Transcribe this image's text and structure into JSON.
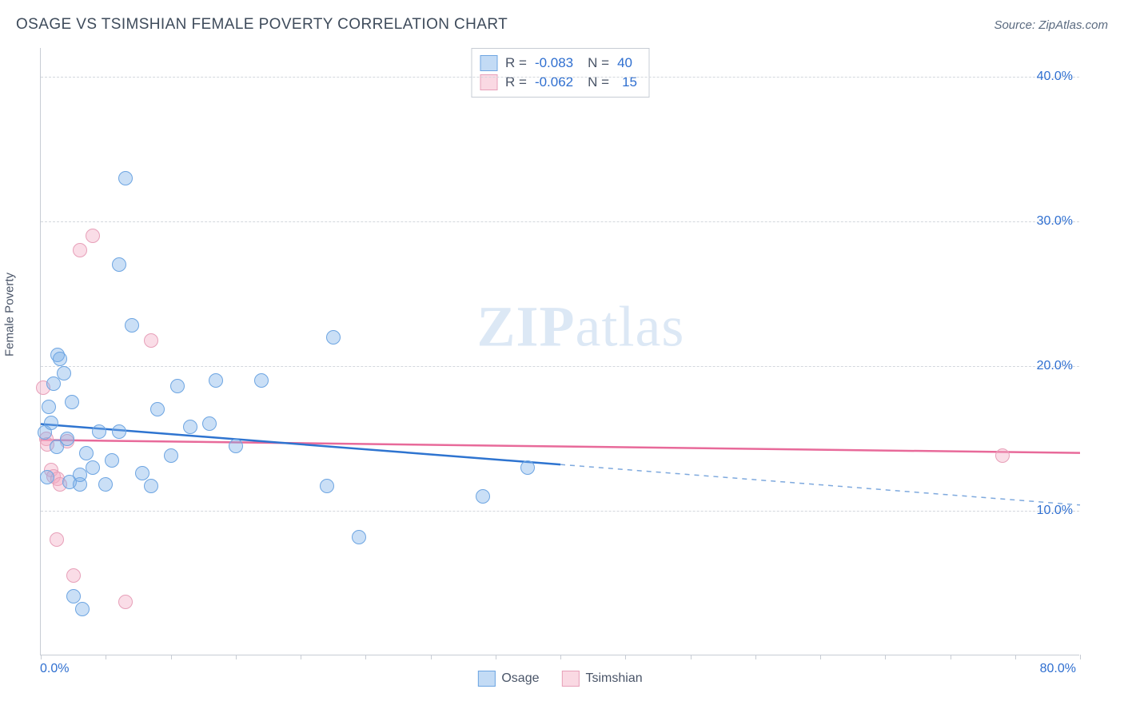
{
  "meta": {
    "title": "OSAGE VS TSIMSHIAN FEMALE POVERTY CORRELATION CHART",
    "source": "Source: ZipAtlas.com",
    "watermark_left": "ZIP",
    "watermark_right": "atlas"
  },
  "chart": {
    "type": "scatter+regression",
    "ylabel": "Female Poverty",
    "xlim": [
      0,
      80
    ],
    "ylim": [
      0,
      42
    ],
    "x_ticks": [
      0,
      5,
      10,
      15,
      20,
      25,
      30,
      35,
      40,
      45,
      50,
      55,
      60,
      65,
      70,
      75,
      80
    ],
    "y_gridlines": [
      {
        "value": 10,
        "label": "10.0%"
      },
      {
        "value": 20,
        "label": "20.0%"
      },
      {
        "value": 30,
        "label": "30.0%"
      },
      {
        "value": 40,
        "label": "40.0%"
      }
    ],
    "x_axis_label_min": "0.0%",
    "x_axis_label_max": "80.0%",
    "background_color": "#ffffff",
    "grid_color": "#d3d7dd",
    "axis_color": "#c7ccd4",
    "axis_label_color": "#2f6fd0",
    "title_fontsize": 19,
    "axis_fontsize": 16,
    "marker_radius": 9,
    "series": {
      "osage": {
        "label": "Osage",
        "color_fill": "rgba(122,175,233,0.40)",
        "color_stroke": "#6da5e2",
        "R": "-0.083",
        "N": "40",
        "points": [
          [
            0.3,
            15.4
          ],
          [
            0.5,
            12.3
          ],
          [
            0.6,
            17.2
          ],
          [
            0.8,
            16.1
          ],
          [
            1.0,
            18.8
          ],
          [
            1.2,
            14.4
          ],
          [
            1.3,
            20.8
          ],
          [
            1.5,
            20.5
          ],
          [
            1.8,
            19.5
          ],
          [
            2.0,
            15.0
          ],
          [
            2.2,
            12.0
          ],
          [
            2.4,
            17.5
          ],
          [
            2.5,
            4.1
          ],
          [
            3.0,
            11.8
          ],
          [
            3.0,
            12.5
          ],
          [
            3.2,
            3.2
          ],
          [
            3.5,
            14.0
          ],
          [
            4.0,
            13.0
          ],
          [
            4.5,
            15.5
          ],
          [
            5.0,
            11.8
          ],
          [
            5.5,
            13.5
          ],
          [
            6.0,
            15.5
          ],
          [
            6.0,
            27.0
          ],
          [
            6.5,
            33.0
          ],
          [
            7.0,
            22.8
          ],
          [
            7.8,
            12.6
          ],
          [
            8.5,
            11.7
          ],
          [
            9.0,
            17.0
          ],
          [
            10.0,
            13.8
          ],
          [
            10.5,
            18.6
          ],
          [
            11.5,
            15.8
          ],
          [
            13.0,
            16.0
          ],
          [
            13.5,
            19.0
          ],
          [
            15.0,
            14.5
          ],
          [
            17.0,
            19.0
          ],
          [
            22.5,
            22.0
          ],
          [
            22.0,
            11.7
          ],
          [
            24.5,
            8.2
          ],
          [
            34.0,
            11.0
          ],
          [
            37.5,
            13.0
          ]
        ],
        "regression": {
          "x1": 0,
          "y1": 16.0,
          "x2": 40,
          "y2": 13.2,
          "ext_x2": 80,
          "ext_y2": 10.4,
          "solid_color": "#2e74d0",
          "dash_color": "#7ea9de",
          "width": 2.5
        }
      },
      "tsimshian": {
        "label": "Tsimshian",
        "color_fill": "rgba(243,170,194,0.40)",
        "color_stroke": "#e7a0b9",
        "R": "-0.062",
        "N": "15",
        "points": [
          [
            0.2,
            18.5
          ],
          [
            0.4,
            15.0
          ],
          [
            0.5,
            14.6
          ],
          [
            0.8,
            12.8
          ],
          [
            1.0,
            12.4
          ],
          [
            1.2,
            8.0
          ],
          [
            1.3,
            12.2
          ],
          [
            1.5,
            11.8
          ],
          [
            2.0,
            14.8
          ],
          [
            2.5,
            5.5
          ],
          [
            3.0,
            28.0
          ],
          [
            4.0,
            29.0
          ],
          [
            6.5,
            3.7
          ],
          [
            8.5,
            21.8
          ],
          [
            74.0,
            13.8
          ]
        ],
        "regression": {
          "x1": 0,
          "y1": 14.9,
          "x2": 80,
          "y2": 14.0,
          "solid_color": "#e86a9a",
          "width": 2.5
        }
      }
    }
  },
  "legend_top": {
    "r_label": "R =",
    "n_label": "N ="
  },
  "legend_bottom": {
    "items": [
      "Osage",
      "Tsimshian"
    ]
  }
}
